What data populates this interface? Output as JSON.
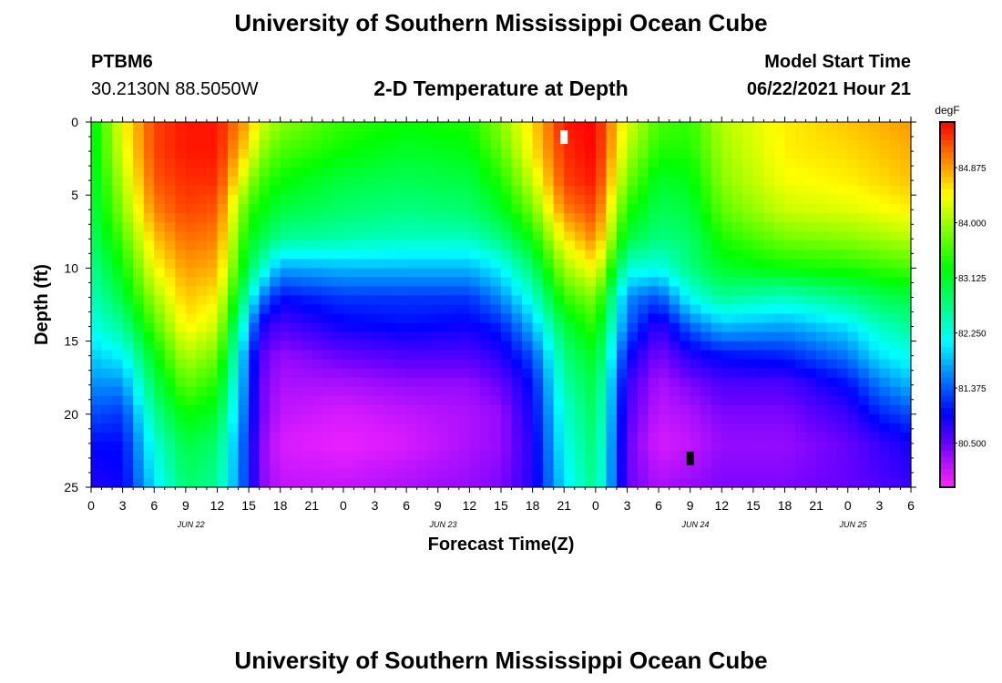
{
  "header": {
    "title": "University of Southern Mississippi Ocean Cube",
    "station_id": "PTBM6",
    "station_coords": "30.2130N  88.5050W",
    "plot_title": "2-D Temperature at Depth",
    "model_start_label": "Model Start Time",
    "model_start_value": "06/22/2021 Hour 21"
  },
  "footer": {
    "title": "University of Southern Mississippi Ocean Cube"
  },
  "chart_data": {
    "type": "heatmap",
    "title": "2-D Temperature at Depth",
    "xlabel": "Forecast Time(Z)",
    "ylabel": "Depth (ft)",
    "y_ticks": [
      0,
      5,
      10,
      15,
      20,
      25
    ],
    "ylim": [
      0,
      25
    ],
    "x_range_hours": [
      0,
      78
    ],
    "x_tick_labels": [
      "0",
      "3",
      "6",
      "9",
      "12",
      "15",
      "18",
      "21",
      "0",
      "3",
      "6",
      "9",
      "12",
      "15",
      "18",
      "21",
      "0",
      "3",
      "6",
      "9",
      "12",
      "15",
      "18",
      "21",
      "0",
      "3",
      "6"
    ],
    "date_labels": [
      {
        "hour": 9.5,
        "label": "JUN 22"
      },
      {
        "hour": 33.5,
        "label": "JUN 23"
      },
      {
        "hour": 57.5,
        "label": "JUN 24"
      },
      {
        "hour": 72.5,
        "label": "JUN 25"
      }
    ],
    "colorbar": {
      "unit": "degF",
      "range": [
        79.8,
        85.6
      ],
      "ticks": [
        "84.875",
        "84.000",
        "83.125",
        "82.250",
        "81.375",
        "80.500"
      ]
    },
    "grid_depths": [
      0,
      2,
      4,
      6,
      8,
      10,
      12,
      14,
      16,
      18,
      20,
      22,
      25
    ],
    "temperature_profiles": [
      {
        "hour": 0,
        "values": [
          83.1,
          83.1,
          83.0,
          82.9,
          82.8,
          82.6,
          82.4,
          82.2,
          81.9,
          81.6,
          81.3,
          81.0,
          80.8
        ]
      },
      {
        "hour": 3,
        "values": [
          84.4,
          84.3,
          84.1,
          83.9,
          83.6,
          83.3,
          83.0,
          82.6,
          82.1,
          81.6,
          81.2,
          81.0,
          80.9
        ]
      },
      {
        "hour": 6,
        "values": [
          85.3,
          85.3,
          85.2,
          85.0,
          84.7,
          84.4,
          84.0,
          83.6,
          83.2,
          82.9,
          82.6,
          82.3,
          82.0
        ]
      },
      {
        "hour": 9,
        "values": [
          85.5,
          85.5,
          85.4,
          85.3,
          85.1,
          84.9,
          84.7,
          84.5,
          84.1,
          83.7,
          83.3,
          83.0,
          82.8
        ]
      },
      {
        "hour": 12,
        "values": [
          85.5,
          85.5,
          85.4,
          85.2,
          85.0,
          84.8,
          84.5,
          84.2,
          83.8,
          83.4,
          83.1,
          82.8,
          82.6
        ]
      },
      {
        "hour": 15,
        "values": [
          84.8,
          84.5,
          84.0,
          83.5,
          83.2,
          82.9,
          82.4,
          81.8,
          81.4,
          81.3,
          81.2,
          81.1,
          81.1
        ]
      },
      {
        "hour": 16,
        "values": [
          84.3,
          84.0,
          83.6,
          83.3,
          83.0,
          82.5,
          81.6,
          80.9,
          80.6,
          80.5,
          80.5,
          80.4,
          80.4
        ]
      },
      {
        "hour": 18,
        "values": [
          83.9,
          83.6,
          83.3,
          83.0,
          82.6,
          81.7,
          81.0,
          80.6,
          80.3,
          80.2,
          80.1,
          80.0,
          80.1
        ]
      },
      {
        "hour": 24,
        "values": [
          83.5,
          83.3,
          83.0,
          82.8,
          82.5,
          81.8,
          81.2,
          80.9,
          80.5,
          80.2,
          80.0,
          79.9,
          80.1
        ]
      },
      {
        "hour": 30,
        "values": [
          83.3,
          83.1,
          82.9,
          82.7,
          82.4,
          81.8,
          81.2,
          81.0,
          80.6,
          80.3,
          80.1,
          80.0,
          80.2
        ]
      },
      {
        "hour": 36,
        "values": [
          83.4,
          83.2,
          83.0,
          82.8,
          82.4,
          81.8,
          81.2,
          80.9,
          80.6,
          80.3,
          80.2,
          80.2,
          80.3
        ]
      },
      {
        "hour": 39,
        "values": [
          83.9,
          83.7,
          83.4,
          83.1,
          82.7,
          82.1,
          81.6,
          81.1,
          80.8,
          80.5,
          80.3,
          80.3,
          80.4
        ]
      },
      {
        "hour": 42,
        "values": [
          84.6,
          84.5,
          84.2,
          83.8,
          83.3,
          82.8,
          82.3,
          81.8,
          81.3,
          81.0,
          80.9,
          80.8,
          80.8
        ]
      },
      {
        "hour": 45,
        "values": [
          85.5,
          85.4,
          85.3,
          85.0,
          84.5,
          84.0,
          83.5,
          83.0,
          82.7,
          82.5,
          82.3,
          82.2,
          82.0
        ]
      },
      {
        "hour": 48,
        "values": [
          85.6,
          85.6,
          85.5,
          85.3,
          85.0,
          84.5,
          83.9,
          83.5,
          83.2,
          83.0,
          82.9,
          82.8,
          82.7
        ]
      },
      {
        "hour": 51,
        "values": [
          84.3,
          84.1,
          83.8,
          83.4,
          83.0,
          82.3,
          81.6,
          81.4,
          81.0,
          80.7,
          80.6,
          80.5,
          80.5
        ]
      },
      {
        "hour": 54,
        "values": [
          83.6,
          83.4,
          83.1,
          82.9,
          82.7,
          82.2,
          81.3,
          80.7,
          80.4,
          80.2,
          80.1,
          80.0,
          80.2
        ]
      },
      {
        "hour": 57,
        "values": [
          83.5,
          83.4,
          83.2,
          83.0,
          82.8,
          82.7,
          82.2,
          81.4,
          80.8,
          80.4,
          80.2,
          80.1,
          80.3
        ]
      },
      {
        "hour": 60,
        "values": [
          84.1,
          84.0,
          83.9,
          83.7,
          83.4,
          83.1,
          82.6,
          81.8,
          81.0,
          80.6,
          80.4,
          80.3,
          80.4
        ]
      },
      {
        "hour": 66,
        "values": [
          84.5,
          84.5,
          84.4,
          84.2,
          83.8,
          83.3,
          82.4,
          81.7,
          81.1,
          80.6,
          80.4,
          80.3,
          80.4
        ]
      },
      {
        "hour": 72,
        "values": [
          84.7,
          84.6,
          84.5,
          84.3,
          83.9,
          83.4,
          82.7,
          82.0,
          81.5,
          81.0,
          80.7,
          80.5,
          80.5
        ]
      },
      {
        "hour": 75,
        "values": [
          84.8,
          84.7,
          84.6,
          84.4,
          84.0,
          83.5,
          82.9,
          82.4,
          82.0,
          81.5,
          81.1,
          80.7,
          80.6
        ]
      },
      {
        "hour": 78,
        "values": [
          84.9,
          84.8,
          84.7,
          84.5,
          84.1,
          83.6,
          83.0,
          82.6,
          82.2,
          81.8,
          81.3,
          80.9,
          80.7
        ]
      }
    ],
    "markers": [
      {
        "kind": "max",
        "hour": 45,
        "depth": 1.0
      },
      {
        "kind": "min",
        "hour": 57,
        "depth": 23.0
      }
    ]
  }
}
